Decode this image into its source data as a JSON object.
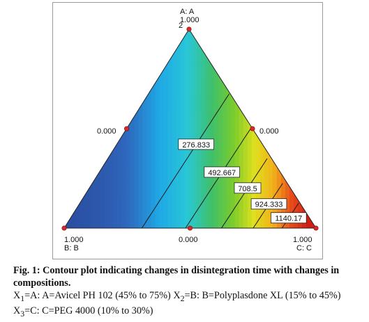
{
  "chart_data": {
    "type": "ternary-contour",
    "title": "",
    "components": [
      {
        "key": "A",
        "axis_label": "A: A",
        "tick_max": "1.000",
        "tick_mid": "0.000"
      },
      {
        "key": "B",
        "axis_label": "B: B",
        "tick_max": "1.000",
        "tick_mid": "0.000"
      },
      {
        "key": "C",
        "axis_label": "C: C",
        "tick_max": "1.000",
        "tick_mid": "0.000"
      }
    ],
    "design_point_replicate_label": "2",
    "contour_levels": [
      276.833,
      492.667,
      708.5,
      924.333,
      1140.17
    ],
    "contour_labels": [
      "276.833",
      "492.667",
      "708.5",
      "924.333",
      "1140.17"
    ],
    "response_range": [
      61,
      1356
    ],
    "color_scale": [
      "#2a4fa2",
      "#2f66bc",
      "#1fa9e6",
      "#29c7d6",
      "#3fc06a",
      "#7ccc2c",
      "#dfe01e",
      "#f2b01a",
      "#e84c1a",
      "#d11f14"
    ],
    "design_points": [
      {
        "A": 1,
        "B": 0,
        "C": 0
      },
      {
        "A": 0,
        "B": 1,
        "C": 0
      },
      {
        "A": 0,
        "B": 0,
        "C": 1
      },
      {
        "A": 0.5,
        "B": 0.5,
        "C": 0
      },
      {
        "A": 0.5,
        "B": 0,
        "C": 0.5
      },
      {
        "A": 0,
        "B": 0.5,
        "C": 0.5
      }
    ]
  },
  "caption": {
    "title": "Fig. 1: Contour plot indicating changes in disintegration time with changes in compositions.",
    "x1_prefix": "X",
    "x1_sub": "1",
    "x1_text": "=A: A=Avicel PH 102 (45% to 75%)",
    "x2_prefix": "X",
    "x2_sub": "2",
    "x2_text": "=B: B=Polyplasdone XL (15% to 45%)",
    "x3_prefix": "X",
    "x3_sub": "3",
    "x3_text": "=C: C=PEG 4000 (10% to 30%)"
  }
}
